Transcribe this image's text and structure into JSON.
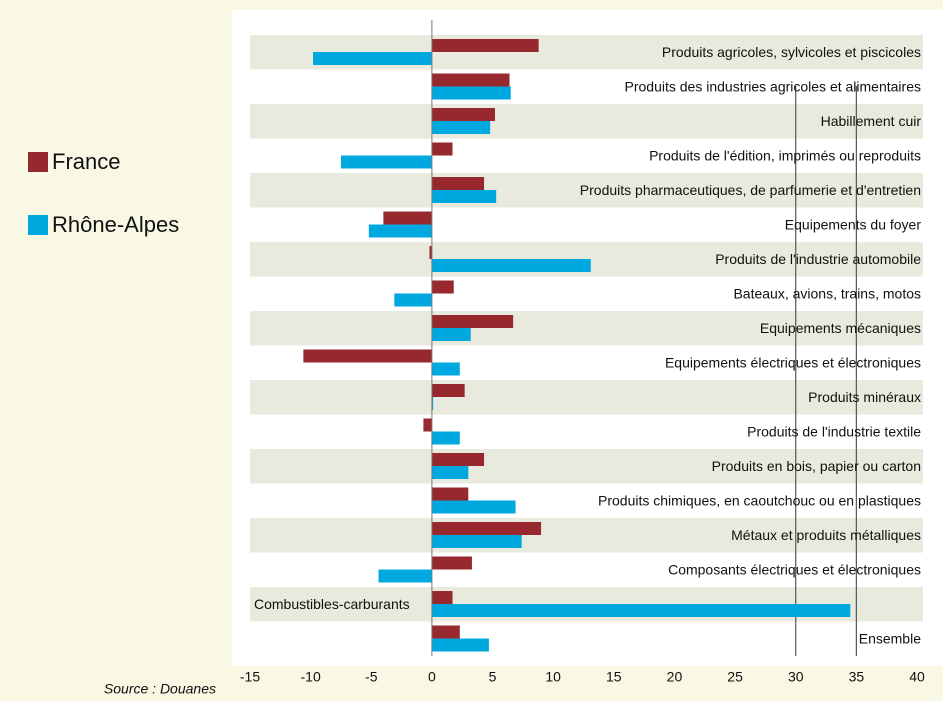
{
  "chart_data": {
    "type": "hbar",
    "categories": [
      "Produits agricoles, sylvicoles et piscicoles",
      "Produits des industries agricoles et alimentaires",
      "Habillement cuir",
      "Produits de l'édition, imprimés ou reproduits",
      "Produits pharmaceutiques, de parfumerie et d'entretien",
      "Equipements du foyer",
      "Produits de l'industrie automobile",
      "Bateaux, avions, trains, motos",
      "Equipements mécaniques",
      "Equipements électriques et électroniques",
      "Produits minéraux",
      "Produits de l'industrie textile",
      "Produits en bois, papier ou carton",
      "Produits chimiques, en caoutchouc ou en plastiques",
      "Métaux et produits métalliques",
      "Composants électriques et électroniques",
      "Combustibles-carburants",
      "Ensemble"
    ],
    "series": [
      {
        "name": "France",
        "color": "#96282e",
        "values": [
          8.8,
          6.4,
          5.2,
          1.7,
          4.3,
          -4.0,
          -0.2,
          1.8,
          6.7,
          -10.6,
          2.7,
          -0.7,
          4.3,
          3.0,
          9.0,
          3.3,
          1.7,
          2.3
        ]
      },
      {
        "name": "Rhône-Alpes",
        "color": "#00a8e0",
        "values": [
          -9.8,
          6.5,
          4.8,
          -7.5,
          5.3,
          -5.2,
          13.1,
          -3.1,
          3.2,
          2.3,
          0.1,
          2.3,
          3.0,
          6.9,
          7.4,
          -4.4,
          34.5,
          4.7
        ]
      }
    ],
    "xlim": [
      -15,
      40
    ],
    "xticks": [
      -15,
      -10,
      -5,
      0,
      5,
      10,
      15,
      20,
      25,
      30,
      35,
      40
    ],
    "source": "Source : Douanes"
  }
}
